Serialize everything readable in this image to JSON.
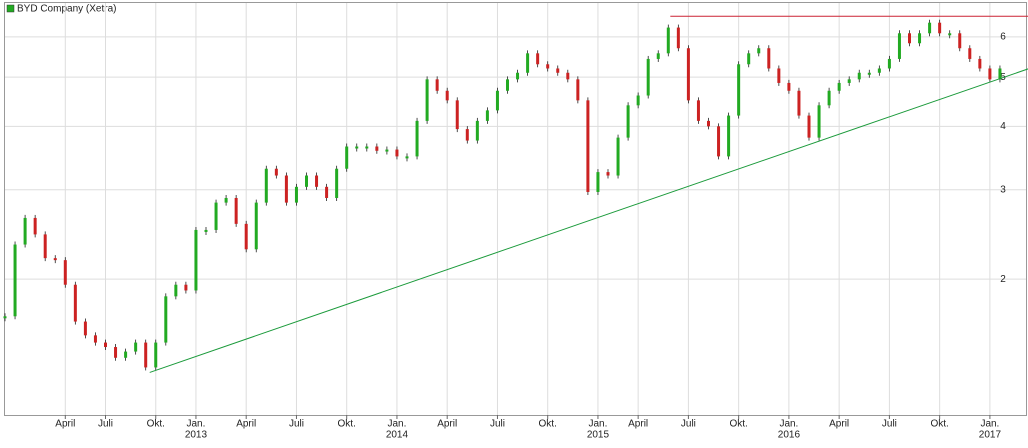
{
  "chart_data": {
    "type": "candlestick",
    "name": "BYD Company (Xetra)",
    "color": "#22aa22",
    "up_color": "#22aa22",
    "down_color": "#cc2222",
    "log_scale": true,
    "grid": true,
    "ylim": [
      1.08,
      7.03
    ],
    "yticks": [
      2,
      3,
      4,
      5,
      6
    ],
    "categories": [
      null,
      null,
      null,
      null,
      null,
      null,
      "April",
      null,
      null,
      null,
      "Juli",
      null,
      null,
      null,
      null,
      "Okt.",
      null,
      null,
      null,
      "Jan.",
      null,
      null,
      null,
      null,
      "April",
      null,
      null,
      null,
      null,
      "Juli",
      null,
      null,
      null,
      null,
      "Okt.",
      null,
      null,
      null,
      null,
      "Jan.",
      null,
      null,
      null,
      null,
      "April",
      null,
      null,
      null,
      null,
      "Juli",
      null,
      null,
      null,
      null,
      "Okt.",
      null,
      null,
      null,
      null,
      "Jan.",
      null,
      null,
      null,
      "April",
      null,
      null,
      null,
      null,
      "Juli",
      null,
      null,
      null,
      null,
      "Okt.",
      null,
      null,
      null,
      null,
      "Jan.",
      null,
      null,
      null,
      null,
      "April",
      null,
      null,
      null,
      null,
      "Juli",
      null,
      null,
      null,
      null,
      "Okt.",
      null,
      null,
      null,
      null,
      "Jan.",
      null
    ],
    "category_years": [
      null,
      null,
      null,
      null,
      null,
      null,
      null,
      null,
      null,
      null,
      null,
      null,
      null,
      null,
      null,
      null,
      null,
      null,
      null,
      "2013",
      null,
      null,
      null,
      null,
      null,
      null,
      null,
      null,
      null,
      null,
      null,
      null,
      null,
      null,
      null,
      null,
      null,
      null,
      null,
      "2014",
      null,
      null,
      null,
      null,
      null,
      null,
      null,
      null,
      null,
      null,
      null,
      null,
      null,
      null,
      null,
      null,
      null,
      null,
      null,
      "2015",
      null,
      null,
      null,
      null,
      null,
      null,
      null,
      null,
      null,
      null,
      null,
      null,
      null,
      null,
      null,
      null,
      null,
      null,
      "2016",
      null,
      null,
      null,
      null,
      null,
      null,
      null,
      null,
      null,
      null,
      null,
      null,
      null,
      null,
      null,
      null,
      null,
      null,
      null,
      "2017",
      null
    ],
    "values": [
      1.69,
      2.34,
      2.64,
      2.45,
      2.2,
      2.18,
      1.95,
      1.65,
      1.55,
      1.5,
      1.47,
      1.4,
      1.44,
      1.5,
      1.34,
      1.5,
      1.85,
      1.95,
      1.9,
      2.5,
      2.5,
      2.83,
      2.89,
      2.57,
      2.29,
      2.83,
      3.3,
      3.2,
      2.83,
      3.04,
      3.2,
      3.04,
      2.89,
      3.3,
      3.65,
      3.65,
      3.65,
      3.58,
      3.6,
      3.49,
      3.49,
      4.1,
      4.95,
      4.7,
      4.5,
      3.95,
      3.75,
      4.1,
      4.3,
      4.7,
      4.95,
      5.1,
      5.57,
      5.3,
      5.2,
      5.1,
      4.95,
      4.5,
      2.97,
      3.25,
      3.2,
      3.8,
      4.4,
      4.6,
      5.43,
      5.57,
      6.26,
      5.7,
      4.5,
      4.1,
      4.0,
      3.49,
      4.2,
      5.3,
      5.57,
      5.7,
      5.2,
      4.87,
      4.7,
      4.2,
      3.8,
      4.4,
      4.7,
      4.87,
      4.95,
      5.1,
      5.1,
      5.2,
      5.43,
      6.1,
      5.83,
      6.1,
      6.4,
      6.1,
      6.1,
      5.7,
      5.43,
      5.2,
      4.95,
      5.2
    ],
    "trendlines": [
      {
        "color": "#1a9a3a",
        "from": [
          14.4,
          1.31
        ],
        "to": [
          101.8,
          5.19
        ]
      },
      {
        "color": "#cc2233",
        "from": [
          66.2,
          6.59
        ],
        "to": [
          101.8,
          6.59
        ]
      }
    ]
  }
}
